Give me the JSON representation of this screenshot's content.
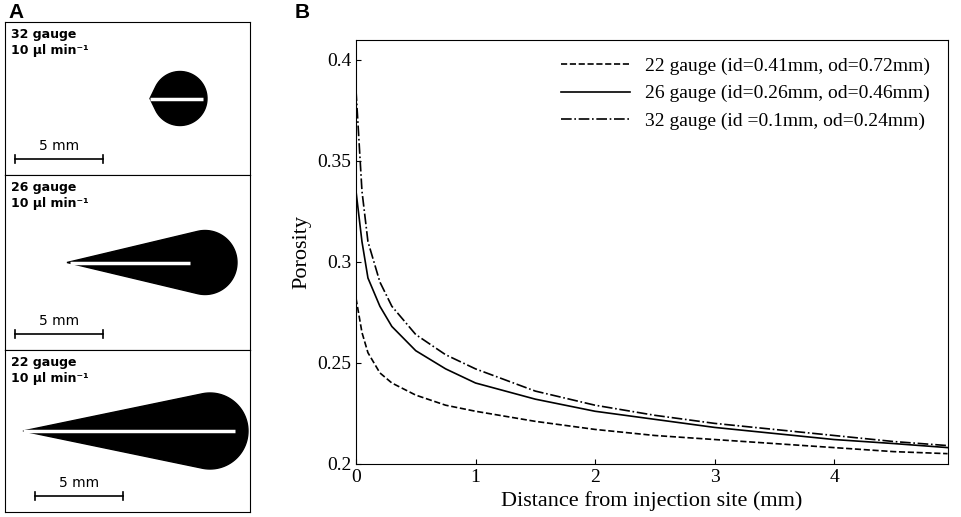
{
  "panel_labels": [
    "A",
    "B"
  ],
  "images": [
    {
      "gauge": "32 gauge",
      "flow_rate": "10 μl min⁻¹",
      "scale_bar": "5 mm"
    },
    {
      "gauge": "26 gauge",
      "flow_rate": "10 μl min⁻¹",
      "scale_bar": "5 mm"
    },
    {
      "gauge": "22 gauge",
      "flow_rate": "10 μl min⁻¹",
      "scale_bar": "5 mm"
    }
  ],
  "chart_data": {
    "type": "line",
    "x_label": "Distance from injection site (mm)",
    "y_label": "Porosity",
    "x": [
      0,
      0.05,
      0.1,
      0.2,
      0.3,
      0.5,
      0.75,
      1,
      1.5,
      2,
      2.5,
      3,
      3.5,
      4,
      4.5,
      4.95
    ],
    "series": [
      {
        "name": "22 gauge (id=0.41mm, od=0.72mm)",
        "color": "#000000",
        "line_style": "dashed",
        "values": [
          0.282,
          0.265,
          0.255,
          0.245,
          0.24,
          0.234,
          0.229,
          0.226,
          0.221,
          0.217,
          0.214,
          0.212,
          0.21,
          0.208,
          0.206,
          0.205
        ]
      },
      {
        "name": "26 gauge (id=0.26mm, od=0.46mm)",
        "color": "#000000",
        "line_style": "solid",
        "values": [
          0.335,
          0.31,
          0.292,
          0.278,
          0.268,
          0.256,
          0.247,
          0.24,
          0.232,
          0.226,
          0.222,
          0.218,
          0.215,
          0.212,
          0.21,
          0.208
        ]
      },
      {
        "name": "32 gauge (id =0.1mm, od=0.24mm)",
        "color": "#000000",
        "line_style": "dashdot",
        "values": [
          0.385,
          0.335,
          0.31,
          0.29,
          0.278,
          0.264,
          0.254,
          0.247,
          0.236,
          0.229,
          0.224,
          0.22,
          0.217,
          0.214,
          0.211,
          0.209
        ]
      }
    ],
    "xlim": [
      0,
      4.95
    ],
    "xticks": [
      0,
      1,
      2,
      3,
      4
    ],
    "ylim": [
      0.2,
      0.41
    ],
    "yticks": [
      0.2,
      0.25,
      0.3,
      0.35,
      0.4
    ],
    "legend": "upper right"
  }
}
